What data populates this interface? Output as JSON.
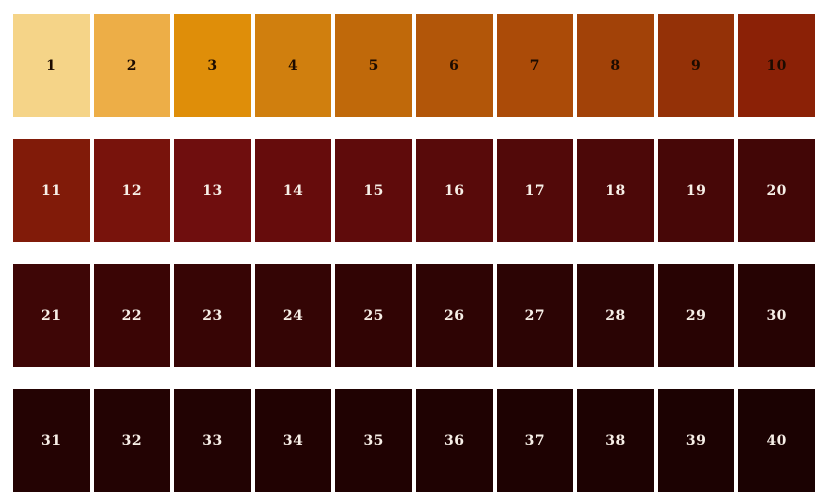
{
  "page": {
    "background": "#ffffff",
    "description_colors": {
      "row1_text": "#1C0B00",
      "rows234_text": "#F7EFE7"
    }
  },
  "grid": {
    "rows": 4,
    "cols": 10,
    "cells": [
      {
        "label": "1",
        "bg": "#F5D488",
        "text": "#1C0B00"
      },
      {
        "label": "2",
        "bg": "#EDAE47",
        "text": "#1C0B00"
      },
      {
        "label": "3",
        "bg": "#DF8E09",
        "text": "#1C0B00"
      },
      {
        "label": "4",
        "bg": "#D07F0E",
        "text": "#1C0B00"
      },
      {
        "label": "5",
        "bg": "#C0690A",
        "text": "#1C0B00"
      },
      {
        "label": "6",
        "bg": "#B25609",
        "text": "#1C0B00"
      },
      {
        "label": "7",
        "bg": "#AB4B08",
        "text": "#1C0B00"
      },
      {
        "label": "8",
        "bg": "#A24208",
        "text": "#1C0B00"
      },
      {
        "label": "9",
        "bg": "#943107",
        "text": "#1C0B00"
      },
      {
        "label": "10",
        "bg": "#8B2106",
        "text": "#1C0B00"
      },
      {
        "label": "11",
        "bg": "#811B09",
        "text": "#F7EFE7"
      },
      {
        "label": "12",
        "bg": "#78130C",
        "text": "#F7EFE7"
      },
      {
        "label": "13",
        "bg": "#6F0E0E",
        "text": "#F7EFE7"
      },
      {
        "label": "14",
        "bg": "#660C0C",
        "text": "#F7EFE7"
      },
      {
        "label": "15",
        "bg": "#5F0B0B",
        "text": "#F7EFE7"
      },
      {
        "label": "16",
        "bg": "#580A0A",
        "text": "#F7EFE7"
      },
      {
        "label": "17",
        "bg": "#520909",
        "text": "#F7EFE7"
      },
      {
        "label": "18",
        "bg": "#4C0808",
        "text": "#F7EFE7"
      },
      {
        "label": "19",
        "bg": "#470707",
        "text": "#F7EFE7"
      },
      {
        "label": "20",
        "bg": "#420606",
        "text": "#F7EFE7"
      },
      {
        "label": "21",
        "bg": "#3E0606",
        "text": "#F7EFE7"
      },
      {
        "label": "22",
        "bg": "#3A0505",
        "text": "#F7EFE7"
      },
      {
        "label": "23",
        "bg": "#370505",
        "text": "#F7EFE7"
      },
      {
        "label": "24",
        "bg": "#340505",
        "text": "#F7EFE7"
      },
      {
        "label": "25",
        "bg": "#310404",
        "text": "#F7EFE7"
      },
      {
        "label": "26",
        "bg": "#2E0404",
        "text": "#F7EFE7"
      },
      {
        "label": "27",
        "bg": "#2C0404",
        "text": "#F7EFE7"
      },
      {
        "label": "28",
        "bg": "#2A0404",
        "text": "#F7EFE7"
      },
      {
        "label": "29",
        "bg": "#280303",
        "text": "#F7EFE7"
      },
      {
        "label": "30",
        "bg": "#260303",
        "text": "#F7EFE7"
      },
      {
        "label": "31",
        "bg": "#240303",
        "text": "#F7EFE7"
      },
      {
        "label": "32",
        "bg": "#230303",
        "text": "#F7EFE7"
      },
      {
        "label": "33",
        "bg": "#220303",
        "text": "#F7EFE7"
      },
      {
        "label": "34",
        "bg": "#210202",
        "text": "#F7EFE7"
      },
      {
        "label": "35",
        "bg": "#200202",
        "text": "#F7EFE7"
      },
      {
        "label": "36",
        "bg": "#1F0202",
        "text": "#F7EFE7"
      },
      {
        "label": "37",
        "bg": "#1E0202",
        "text": "#F7EFE7"
      },
      {
        "label": "38",
        "bg": "#1D0202",
        "text": "#F7EFE7"
      },
      {
        "label": "39",
        "bg": "#1C0202",
        "text": "#F7EFE7"
      },
      {
        "label": "40",
        "bg": "#1B0202",
        "text": "#F7EFE7"
      }
    ]
  }
}
